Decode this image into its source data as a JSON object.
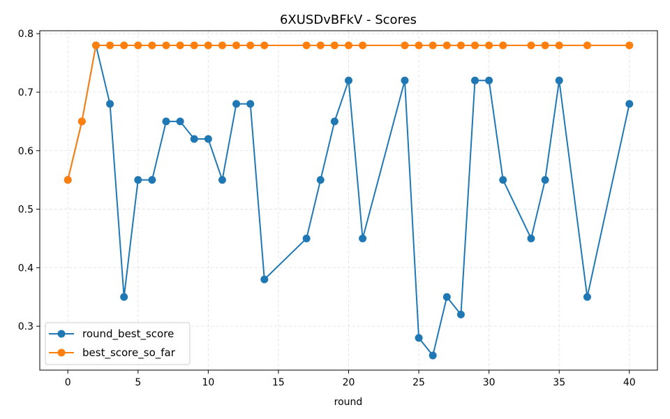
{
  "chart_data": {
    "type": "line",
    "title": "6XUSDvBFkV - Scores",
    "xlabel": "round",
    "ylabel": "",
    "xlim": [
      -2,
      42
    ],
    "ylim": [
      0.225,
      0.805
    ],
    "xticks": [
      0,
      5,
      10,
      15,
      20,
      25,
      30,
      35,
      40
    ],
    "yticks": [
      0.3,
      0.4,
      0.5,
      0.6,
      0.7,
      0.8
    ],
    "ytick_labels": [
      "0.3",
      "0.4",
      "0.5",
      "0.6",
      "0.7",
      "0.8"
    ],
    "grid": true,
    "legend_position": "lower-left",
    "x": [
      0,
      1,
      2,
      3,
      4,
      5,
      6,
      7,
      8,
      9,
      10,
      11,
      12,
      13,
      14,
      17,
      18,
      19,
      20,
      21,
      24,
      25,
      26,
      27,
      28,
      29,
      30,
      31,
      33,
      34,
      35,
      37,
      40
    ],
    "series": [
      {
        "name": "round_best_score",
        "color": "#1f77b4",
        "values": [
          0.55,
          0.65,
          0.78,
          0.68,
          0.35,
          0.55,
          0.55,
          0.65,
          0.65,
          0.62,
          0.62,
          0.55,
          0.68,
          0.68,
          0.38,
          0.45,
          0.55,
          0.65,
          0.72,
          0.45,
          0.72,
          0.28,
          0.25,
          0.35,
          0.32,
          0.72,
          0.72,
          0.55,
          0.45,
          0.55,
          0.72,
          0.35,
          0.68
        ]
      },
      {
        "name": "best_score_so_far",
        "color": "#ff7f0e",
        "values": [
          0.55,
          0.65,
          0.78,
          0.78,
          0.78,
          0.78,
          0.78,
          0.78,
          0.78,
          0.78,
          0.78,
          0.78,
          0.78,
          0.78,
          0.78,
          0.78,
          0.78,
          0.78,
          0.78,
          0.78,
          0.78,
          0.78,
          0.78,
          0.78,
          0.78,
          0.78,
          0.78,
          0.78,
          0.78,
          0.78,
          0.78,
          0.78,
          0.78
        ]
      }
    ]
  }
}
